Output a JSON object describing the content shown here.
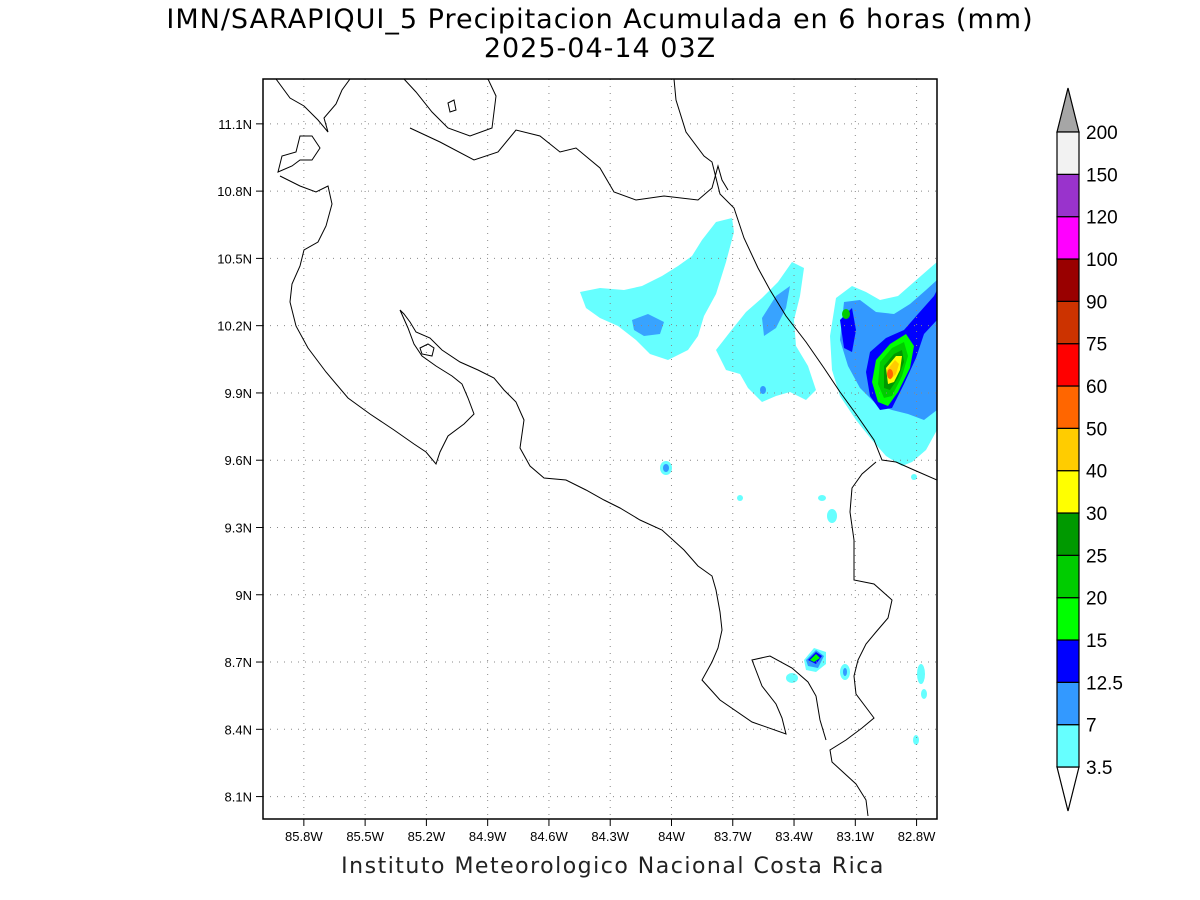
{
  "title": "IMN/SARAPIQUI_5 Precipitacion Acumulada en 6 horas (mm)",
  "subtitle": "2025-04-14 03Z",
  "credit": "Instituto Meteorologico Nacional Costa Rica",
  "map": {
    "lon_range": [
      -86.0,
      -82.7
    ],
    "lat_range": [
      8.0,
      11.3
    ],
    "lon_ticks": [
      "85.8W",
      "85.5W",
      "85.2W",
      "84.9W",
      "84.6W",
      "84.3W",
      "84W",
      "83.7W",
      "83.4W",
      "83.1W",
      "82.8W"
    ],
    "lat_ticks": [
      "11.1N",
      "10.8N",
      "10.5N",
      "10.2N",
      "9.9N",
      "9.6N",
      "9.3N",
      "9N",
      "8.7N",
      "8.4N",
      "8.1N"
    ],
    "grid": "dotted"
  },
  "colorbar": {
    "labels": [
      "3.5",
      "7",
      "12.5",
      "15",
      "20",
      "25",
      "30",
      "40",
      "50",
      "60",
      "75",
      "90",
      "100",
      "120",
      "150",
      "200"
    ],
    "colors": [
      "#66ffff",
      "#3399ff",
      "#0000ff",
      "#00ff00",
      "#00cc00",
      "#009900",
      "#ffff00",
      "#ffcc00",
      "#ff6600",
      "#ff0000",
      "#cc3300",
      "#990000",
      "#ff00ff",
      "#9933cc",
      "#f2f2f2"
    ],
    "under_color": "#ffffff",
    "over_color": "#a6a6a6"
  }
}
